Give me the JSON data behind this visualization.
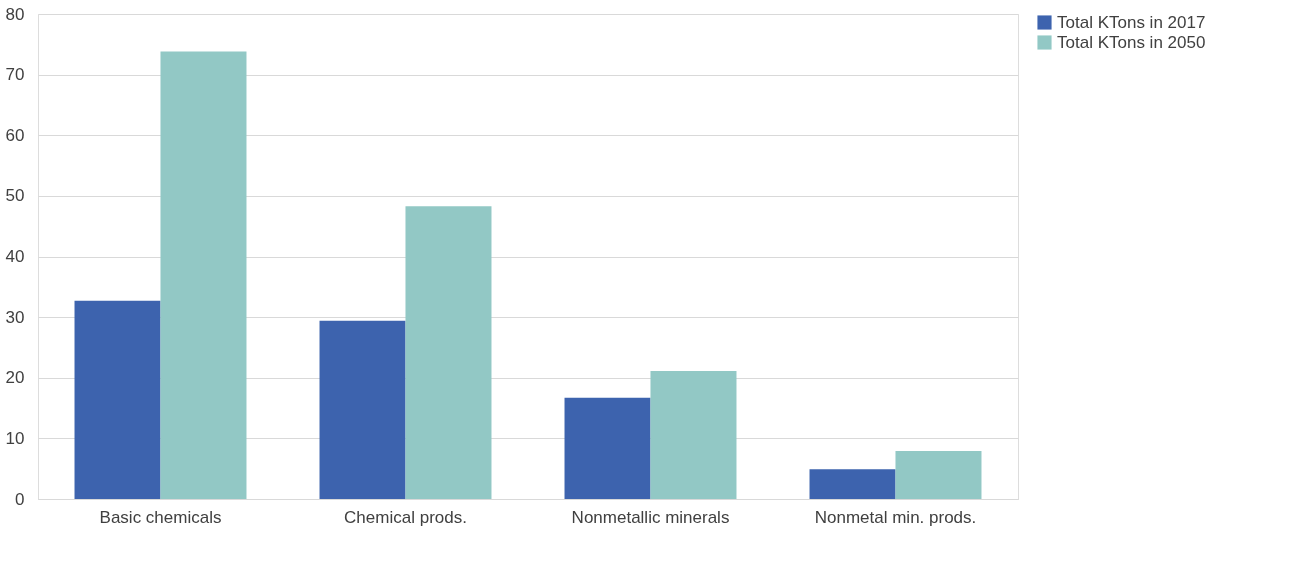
{
  "chart_data": {
    "type": "bar",
    "categories": [
      "Basic chemicals",
      "Chemical prods.",
      "Nonmetallic minerals",
      "Nonmetal min. prods."
    ],
    "series": [
      {
        "name": "Total KTons in 2017",
        "color": "#3d63ae",
        "values": [
          32.7,
          29.4,
          16.7,
          4.9
        ]
      },
      {
        "name": "Total KTons in 2050",
        "color": "#92c8c5",
        "values": [
          73.8,
          48.3,
          21.1,
          7.9
        ]
      }
    ],
    "ylim": [
      0,
      80
    ],
    "yticks": [
      0,
      10,
      20,
      30,
      40,
      50,
      60,
      70,
      80
    ],
    "grid": "y",
    "legend": "right"
  }
}
